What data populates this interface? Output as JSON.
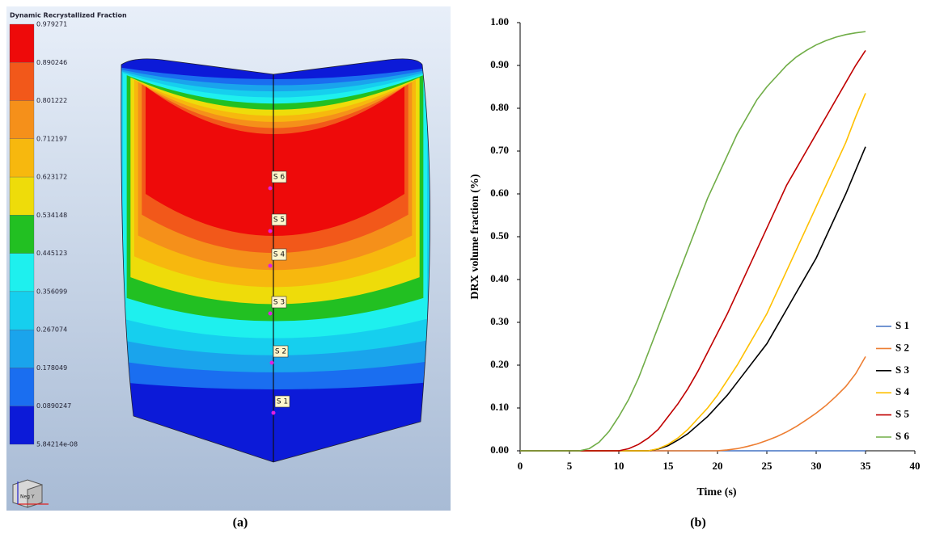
{
  "panel_a": {
    "title": "Dynamic Recrystallized Fraction",
    "colorbar": {
      "labels": [
        "0.979271",
        "0.890246",
        "0.801222",
        "0.712197",
        "0.623172",
        "0.534148",
        "0.445123",
        "0.356099",
        "0.267074",
        "0.178049",
        "0.0890247",
        "5.84214e-08"
      ],
      "colors": [
        "#ee0a0a",
        "#f2581a",
        "#f5901a",
        "#f7b80e",
        "#eedc0a",
        "#22c022",
        "#1ef0ee",
        "#16cfee",
        "#1aa4ec",
        "#1a6ef0",
        "#0c1ad8"
      ]
    },
    "points": [
      "S 1",
      "S 2",
      "S 3",
      "S 4",
      "S 5",
      "S 6"
    ],
    "view_cube": "Neg Y",
    "caption": "(a)"
  },
  "chart_data": {
    "type": "line",
    "caption": "(b)",
    "x_label": "Time (s)",
    "y_label": "DRX volume fraction (%)",
    "x": [
      0,
      1,
      2,
      3,
      4,
      5,
      6,
      7,
      8,
      9,
      10,
      11,
      12,
      13,
      14,
      15,
      16,
      17,
      18,
      19,
      20,
      21,
      22,
      23,
      24,
      25,
      26,
      27,
      28,
      29,
      30,
      31,
      32,
      33,
      34,
      35
    ],
    "series": [
      {
        "name": "S 1",
        "color": "#4472c4",
        "values": [
          0,
          0,
          0,
          0,
          0,
          0,
          0,
          0,
          0,
          0,
          0,
          0,
          0,
          0,
          0,
          0,
          0,
          0,
          0,
          0,
          0,
          0,
          0,
          0,
          0,
          0,
          0,
          0,
          0,
          0,
          0,
          0,
          0,
          0,
          0,
          0
        ]
      },
      {
        "name": "S 2",
        "color": "#ed7d31",
        "values": [
          0,
          0,
          0,
          0,
          0,
          0,
          0,
          0,
          0,
          0,
          0,
          0,
          0,
          0,
          0,
          0,
          0,
          0,
          0,
          0,
          0,
          0.002,
          0.005,
          0.01,
          0.016,
          0.024,
          0.033,
          0.044,
          0.057,
          0.072,
          0.088,
          0.106,
          0.127,
          0.15,
          0.18,
          0.22
        ]
      },
      {
        "name": "S 3",
        "color": "#000000",
        "values": [
          0,
          0,
          0,
          0,
          0,
          0,
          0,
          0,
          0,
          0,
          0,
          0,
          0,
          0,
          0.004,
          0.012,
          0.025,
          0.04,
          0.06,
          0.08,
          0.105,
          0.13,
          0.16,
          0.19,
          0.22,
          0.25,
          0.29,
          0.33,
          0.37,
          0.41,
          0.45,
          0.5,
          0.55,
          0.6,
          0.655,
          0.71
        ]
      },
      {
        "name": "S 4",
        "color": "#ffc000",
        "values": [
          0,
          0,
          0,
          0,
          0,
          0,
          0,
          0,
          0,
          0,
          0,
          0,
          0,
          0,
          0.005,
          0.015,
          0.03,
          0.05,
          0.075,
          0.1,
          0.13,
          0.165,
          0.2,
          0.24,
          0.28,
          0.32,
          0.37,
          0.42,
          0.47,
          0.52,
          0.57,
          0.62,
          0.67,
          0.72,
          0.78,
          0.835
        ]
      },
      {
        "name": "S 5",
        "color": "#c00000",
        "values": [
          0,
          0,
          0,
          0,
          0,
          0,
          0,
          0,
          0,
          0,
          0,
          0.005,
          0.015,
          0.03,
          0.05,
          0.08,
          0.11,
          0.145,
          0.185,
          0.23,
          0.275,
          0.32,
          0.37,
          0.42,
          0.47,
          0.52,
          0.57,
          0.62,
          0.66,
          0.7,
          0.74,
          0.78,
          0.82,
          0.86,
          0.9,
          0.935
        ]
      },
      {
        "name": "S 6",
        "color": "#70ad47",
        "values": [
          0,
          0,
          0,
          0,
          0,
          0,
          0,
          0.005,
          0.02,
          0.045,
          0.08,
          0.12,
          0.17,
          0.23,
          0.29,
          0.35,
          0.41,
          0.47,
          0.53,
          0.59,
          0.64,
          0.69,
          0.74,
          0.78,
          0.82,
          0.85,
          0.875,
          0.9,
          0.92,
          0.935,
          0.948,
          0.958,
          0.966,
          0.972,
          0.976,
          0.979
        ]
      }
    ],
    "xlim": [
      0,
      40
    ],
    "xticks": [
      0,
      5,
      10,
      15,
      20,
      25,
      30,
      35,
      40
    ],
    "ylim": [
      0,
      1
    ],
    "yticks": [
      {
        "value": 0,
        "label": "0.00"
      },
      {
        "value": 0.1,
        "label": "0.10"
      },
      {
        "value": 0.2,
        "label": "0.20"
      },
      {
        "value": 0.3,
        "label": "0.30"
      },
      {
        "value": 0.4,
        "label": "0.40"
      },
      {
        "value": 0.5,
        "label": "0.50"
      },
      {
        "value": 0.6,
        "label": "0.60"
      },
      {
        "value": 0.7,
        "label": "0.70"
      },
      {
        "value": 0.8,
        "label": "0.80"
      },
      {
        "value": 0.9,
        "label": "0.90"
      },
      {
        "value": 1,
        "label": "1.00"
      }
    ],
    "grid": false,
    "legend": "lower right"
  }
}
